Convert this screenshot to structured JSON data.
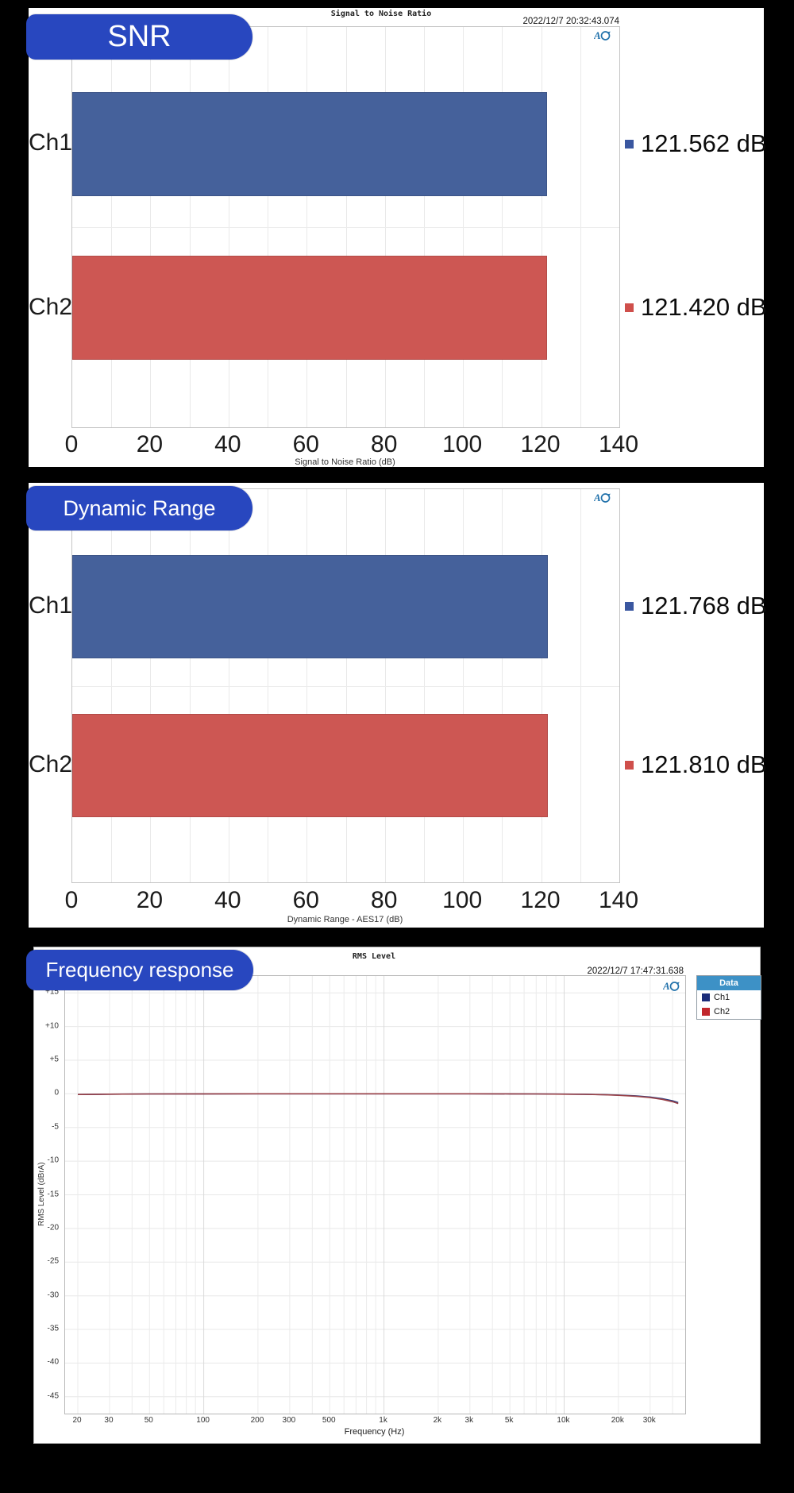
{
  "window": {
    "type": "audio-analyzer-measurement-report"
  },
  "colors": {
    "background": "#000000",
    "badge_blue": "#2847bf",
    "bar_blue": "#45619b",
    "bar_red": "#cd5753",
    "legend_header_blue": "#3d91c6",
    "ap_logo_blue": "#2272ab"
  },
  "icons": {
    "ap_logo": "ap-logo-icon",
    "ch1_marker": "square",
    "ch2_marker": "square"
  },
  "panels": {
    "snr": {
      "badge": "SNR",
      "timestamp": "2022/12/7 20:32:43.074"
    },
    "dynamic_range": {
      "badge": "Dynamic Range"
    },
    "frequency_response": {
      "badge": "Frequency response",
      "timestamp": "2022/12/7 17:47:31.638"
    }
  },
  "chart_data": [
    {
      "type": "bar",
      "orientation": "horizontal",
      "title": "Signal to Noise Ratio",
      "categories": [
        "Ch1",
        "Ch2"
      ],
      "values": [
        121.562,
        121.42
      ],
      "value_labels": [
        "121.562 dB",
        "121.420 dB"
      ],
      "unit": "dB",
      "xlabel": "Signal to Noise Ratio (dB)",
      "xlim": [
        0,
        140
      ],
      "xticks": [
        0,
        20,
        40,
        60,
        80,
        100,
        120,
        140
      ],
      "grid_step": 10,
      "series_colors": [
        "#45619b",
        "#cd5753"
      ],
      "marker_colors": [
        "#3a57a0",
        "#cf4f4b"
      ]
    },
    {
      "type": "bar",
      "orientation": "horizontal",
      "title": "Dynamic Range",
      "categories": [
        "Ch1",
        "Ch2"
      ],
      "values": [
        121.768,
        121.81
      ],
      "value_labels": [
        "121.768 dB",
        "121.810 dB"
      ],
      "unit": "dB",
      "xlabel": "Dynamic Range - AES17 (dB)",
      "xlim": [
        0,
        140
      ],
      "xticks": [
        0,
        20,
        40,
        60,
        80,
        100,
        120,
        140
      ],
      "grid_step": 10,
      "series_colors": [
        "#45619b",
        "#cd5753"
      ],
      "marker_colors": [
        "#3a57a0",
        "#cf4f4b"
      ]
    },
    {
      "type": "line",
      "title": "RMS Level",
      "xscale": "log",
      "xlabel": "Frequency (Hz)",
      "ylabel": "RMS Level (dBrA)",
      "xlim": [
        17,
        47000
      ],
      "ylim": [
        -47.5,
        17.5
      ],
      "xticks": [
        20,
        30,
        50,
        100,
        200,
        300,
        500,
        1000,
        2000,
        3000,
        5000,
        10000,
        20000,
        30000
      ],
      "xtick_labels": [
        "20",
        "30",
        "50",
        "100",
        "200",
        "300",
        "500",
        "1k",
        "2k",
        "3k",
        "5k",
        "10k",
        "20k",
        "30k"
      ],
      "yticks": [
        15,
        10,
        5,
        0,
        -5,
        -10,
        -15,
        -20,
        -25,
        -30,
        -35,
        -40,
        -45
      ],
      "grid": true,
      "legend": {
        "title": "Data",
        "position": "outside-right",
        "entries": [
          {
            "label": "Ch1",
            "color": "#1b2d7a"
          },
          {
            "label": "Ch2",
            "color": "#c1272d"
          }
        ]
      },
      "series": [
        {
          "name": "Ch1",
          "color": "#2c3e7f",
          "x": [
            20,
            30,
            50,
            100,
            200,
            300,
            500,
            1000,
            2000,
            3000,
            5000,
            7000,
            10000,
            13000,
            16000,
            20000,
            25000,
            30000,
            35000,
            40000,
            43000
          ],
          "y": [
            -0.1,
            -0.05,
            -0.02,
            -0.01,
            0,
            0,
            0,
            0,
            0,
            0,
            -0.01,
            -0.02,
            -0.04,
            -0.07,
            -0.11,
            -0.18,
            -0.3,
            -0.48,
            -0.72,
            -1.05,
            -1.3
          ]
        },
        {
          "name": "Ch2",
          "color": "#9a4147",
          "x": [
            20,
            30,
            50,
            100,
            200,
            300,
            500,
            1000,
            2000,
            3000,
            5000,
            7000,
            10000,
            13000,
            16000,
            20000,
            25000,
            30000,
            35000,
            40000,
            43000
          ],
          "y": [
            -0.1,
            -0.05,
            -0.02,
            -0.01,
            0,
            0,
            0,
            0,
            0,
            0,
            -0.01,
            -0.02,
            -0.05,
            -0.08,
            -0.13,
            -0.22,
            -0.36,
            -0.56,
            -0.82,
            -1.18,
            -1.45
          ]
        }
      ]
    }
  ]
}
